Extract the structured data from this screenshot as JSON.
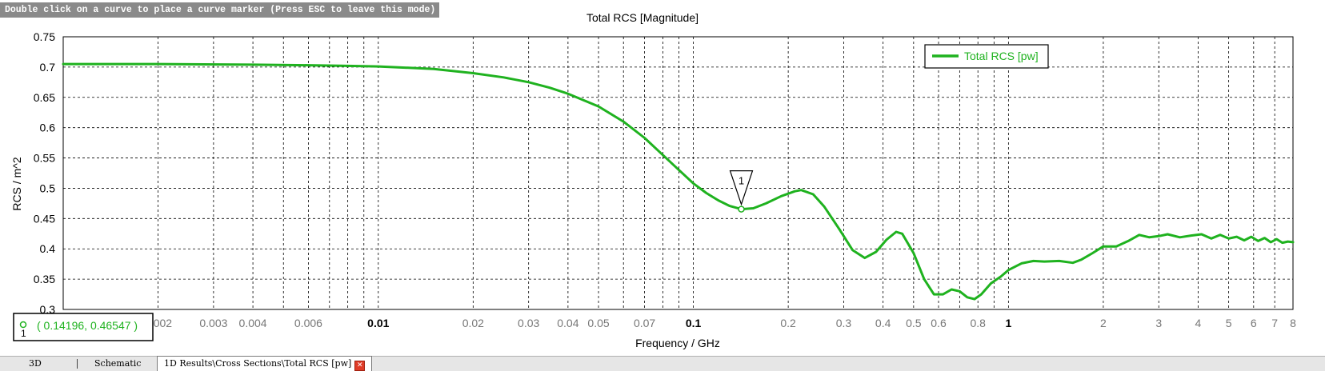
{
  "hint_text": "Double click on a curve to place a curve marker (Press ESC to leave this mode)",
  "colors": {
    "curve": "#1fb21f",
    "marker_text": "#1fb21f",
    "hint_bg": "#8a8a8a",
    "close_btn": "#e03c28"
  },
  "tabs": [
    {
      "label": "3D",
      "active": false
    },
    {
      "label": "Schematic",
      "active": false
    },
    {
      "label": "1D Results\\Cross Sections\\Total RCS [pw]",
      "active": true,
      "close_icon": "close-icon"
    }
  ],
  "marker": {
    "label": "1",
    "readout_x": "0.14196",
    "readout_y": "0.46547",
    "readout": "( 0.14196, 0.46547 )",
    "x": 0.14196,
    "y": 0.46547
  },
  "chart_data": {
    "type": "line",
    "title": "Total RCS [Magnitude]",
    "xlabel": "Frequency / GHz",
    "ylabel": "RCS / m^2",
    "xscale": "log",
    "xlim": [
      0.001,
      8
    ],
    "ylim": [
      0.3,
      0.75
    ],
    "grid": true,
    "legend_position": "top-right",
    "yticks": [
      {
        "value": 0.3,
        "label": "0.3"
      },
      {
        "value": 0.35,
        "label": "0.35"
      },
      {
        "value": 0.4,
        "label": "0.4"
      },
      {
        "value": 0.45,
        "label": "0.45"
      },
      {
        "value": 0.5,
        "label": "0.5"
      },
      {
        "value": 0.55,
        "label": "0.55"
      },
      {
        "value": 0.6,
        "label": "0.6"
      },
      {
        "value": 0.65,
        "label": "0.65"
      },
      {
        "value": 0.7,
        "label": "0.7"
      },
      {
        "value": 0.75,
        "label": "0.75"
      }
    ],
    "xticks": [
      {
        "value": 0.002,
        "label": "0.002"
      },
      {
        "value": 0.003,
        "label": "0.003"
      },
      {
        "value": 0.004,
        "label": "0.004"
      },
      {
        "value": 0.005,
        "label": ""
      },
      {
        "value": 0.006,
        "label": "0.006"
      },
      {
        "value": 0.007,
        "label": ""
      },
      {
        "value": 0.008,
        "label": ""
      },
      {
        "value": 0.009,
        "label": ""
      },
      {
        "value": 0.01,
        "label": "0.01",
        "major": true
      },
      {
        "value": 0.02,
        "label": "0.02"
      },
      {
        "value": 0.03,
        "label": "0.03"
      },
      {
        "value": 0.04,
        "label": "0.04"
      },
      {
        "value": 0.05,
        "label": "0.05"
      },
      {
        "value": 0.06,
        "label": ""
      },
      {
        "value": 0.07,
        "label": "0.07"
      },
      {
        "value": 0.08,
        "label": ""
      },
      {
        "value": 0.09,
        "label": ""
      },
      {
        "value": 0.1,
        "label": "0.1",
        "major": true
      },
      {
        "value": 0.2,
        "label": "0.2"
      },
      {
        "value": 0.3,
        "label": "0.3"
      },
      {
        "value": 0.4,
        "label": "0.4"
      },
      {
        "value": 0.5,
        "label": "0.5"
      },
      {
        "value": 0.6,
        "label": "0.6"
      },
      {
        "value": 0.7,
        "label": ""
      },
      {
        "value": 0.8,
        "label": "0.8"
      },
      {
        "value": 0.9,
        "label": ""
      },
      {
        "value": 1,
        "label": "1",
        "major": true
      },
      {
        "value": 2,
        "label": "2"
      },
      {
        "value": 3,
        "label": "3"
      },
      {
        "value": 4,
        "label": "4"
      },
      {
        "value": 5,
        "label": "5"
      },
      {
        "value": 6,
        "label": "6"
      },
      {
        "value": 7,
        "label": "7"
      },
      {
        "value": 8,
        "label": "8"
      }
    ],
    "series": [
      {
        "name": "Total RCS [pw]",
        "color": "#1fb21f",
        "x": [
          0.001,
          0.002,
          0.004,
          0.006,
          0.008,
          0.01,
          0.015,
          0.02,
          0.025,
          0.03,
          0.035,
          0.04,
          0.05,
          0.06,
          0.07,
          0.08,
          0.09,
          0.1,
          0.11,
          0.12,
          0.13,
          0.14196,
          0.155,
          0.17,
          0.19,
          0.21,
          0.22,
          0.24,
          0.26,
          0.29,
          0.32,
          0.35,
          0.38,
          0.41,
          0.44,
          0.46,
          0.5,
          0.54,
          0.58,
          0.62,
          0.66,
          0.7,
          0.74,
          0.78,
          0.82,
          0.88,
          0.95,
          1.0,
          1.1,
          1.2,
          1.3,
          1.45,
          1.6,
          1.7,
          1.85,
          2.0,
          2.2,
          2.4,
          2.6,
          2.8,
          3.0,
          3.2,
          3.5,
          3.8,
          4.1,
          4.4,
          4.7,
          5.0,
          5.3,
          5.6,
          5.9,
          6.2,
          6.5,
          6.8,
          7.1,
          7.4,
          7.7,
          8.0
        ],
        "y": [
          0.705,
          0.705,
          0.704,
          0.703,
          0.702,
          0.701,
          0.697,
          0.69,
          0.683,
          0.675,
          0.666,
          0.656,
          0.635,
          0.61,
          0.583,
          0.555,
          0.53,
          0.508,
          0.492,
          0.48,
          0.471,
          0.4655,
          0.467,
          0.475,
          0.487,
          0.495,
          0.497,
          0.49,
          0.47,
          0.433,
          0.398,
          0.385,
          0.395,
          0.415,
          0.428,
          0.425,
          0.393,
          0.35,
          0.325,
          0.325,
          0.333,
          0.33,
          0.32,
          0.317,
          0.325,
          0.343,
          0.355,
          0.365,
          0.376,
          0.38,
          0.379,
          0.38,
          0.377,
          0.382,
          0.393,
          0.404,
          0.404,
          0.413,
          0.423,
          0.419,
          0.421,
          0.424,
          0.419,
          0.422,
          0.424,
          0.417,
          0.423,
          0.417,
          0.42,
          0.414,
          0.42,
          0.413,
          0.418,
          0.411,
          0.416,
          0.41,
          0.412,
          0.411
        ]
      }
    ]
  }
}
